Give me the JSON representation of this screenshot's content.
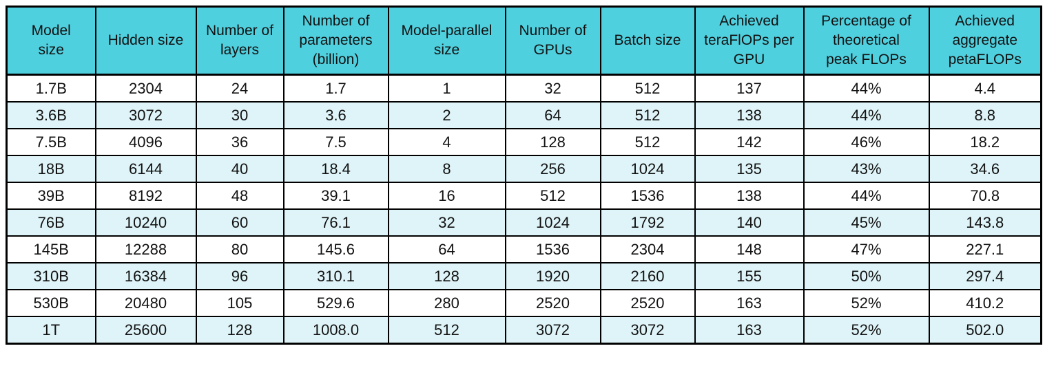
{
  "chart_data": {
    "type": "table",
    "columns": [
      "Model\nsize",
      "Hidden size",
      "Number of\nlayers",
      "Number of\nparameters\n(billion)",
      "Model-parallel\nsize",
      "Number of\nGPUs",
      "Batch size",
      "Achieved\nteraFlOPs per\nGPU",
      "Percentage of\ntheoretical\npeak FLOPs",
      "Achieved\naggregate\npetaFLOPs"
    ],
    "rows": [
      [
        "1.7B",
        "2304",
        "24",
        "1.7",
        "1",
        "32",
        "512",
        "137",
        "44%",
        "4.4"
      ],
      [
        "3.6B",
        "3072",
        "30",
        "3.6",
        "2",
        "64",
        "512",
        "138",
        "44%",
        "8.8"
      ],
      [
        "7.5B",
        "4096",
        "36",
        "7.5",
        "4",
        "128",
        "512",
        "142",
        "46%",
        "18.2"
      ],
      [
        "18B",
        "6144",
        "40",
        "18.4",
        "8",
        "256",
        "1024",
        "135",
        "43%",
        "34.6"
      ],
      [
        "39B",
        "8192",
        "48",
        "39.1",
        "16",
        "512",
        "1536",
        "138",
        "44%",
        "70.8"
      ],
      [
        "76B",
        "10240",
        "60",
        "76.1",
        "32",
        "1024",
        "1792",
        "140",
        "45%",
        "143.8"
      ],
      [
        "145B",
        "12288",
        "80",
        "145.6",
        "64",
        "1536",
        "2304",
        "148",
        "47%",
        "227.1"
      ],
      [
        "310B",
        "16384",
        "96",
        "310.1",
        "128",
        "1920",
        "2160",
        "155",
        "50%",
        "297.4"
      ],
      [
        "530B",
        "20480",
        "105",
        "529.6",
        "280",
        "2520",
        "2520",
        "163",
        "52%",
        "410.2"
      ],
      [
        "1T",
        "25600",
        "128",
        "1008.0",
        "512",
        "3072",
        "3072",
        "163",
        "52%",
        "502.0"
      ]
    ]
  },
  "colors": {
    "header_bg": "#4FD0DF",
    "row_bg": "#FFFFFF",
    "row_alt_bg": "#DFF4F8",
    "border": "#000000",
    "text": "#121212"
  }
}
